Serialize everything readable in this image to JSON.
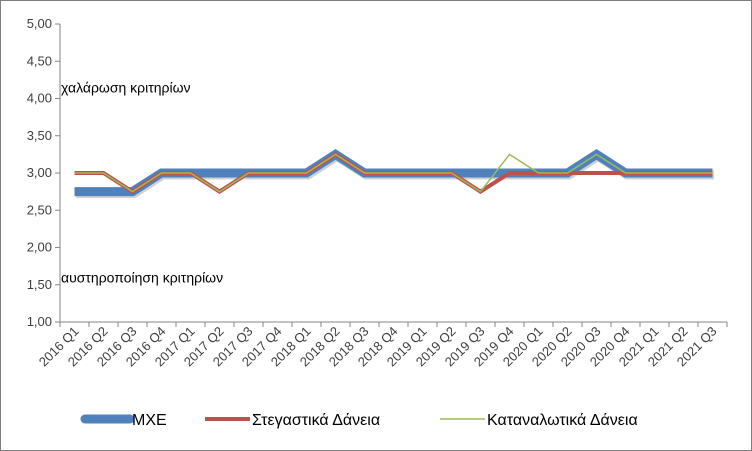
{
  "chart_data": {
    "type": "line",
    "title": "",
    "xlabel": "",
    "ylabel": "",
    "ylim": [
      1.0,
      5.0
    ],
    "yticks": [
      "1,00",
      "1,50",
      "2,00",
      "2,50",
      "3,00",
      "3,50",
      "4,00",
      "4,50",
      "5,00"
    ],
    "grid": "none",
    "legend_position": "bottom",
    "categories": [
      "2016 Q1",
      "2016 Q2",
      "2016 Q3",
      "2016 Q4",
      "2017 Q1",
      "2017 Q2",
      "2017 Q3",
      "2017 Q4",
      "2018 Q1",
      "2018 Q2",
      "2018 Q3",
      "2018 Q4",
      "2019 Q1",
      "2019 Q2",
      "2019 Q3",
      "2019 Q4",
      "2020 Q1",
      "2020 Q2",
      "2020 Q3",
      "2020 Q4",
      "2021 Q1",
      "2021 Q2",
      "2021 Q3"
    ],
    "series": [
      {
        "name": "ΜΧΕ",
        "color": "#4F81BD",
        "values": [
          2.75,
          2.75,
          2.75,
          3.0,
          3.0,
          3.0,
          3.0,
          3.0,
          3.0,
          3.25,
          3.0,
          3.0,
          3.0,
          3.0,
          3.0,
          3.0,
          3.0,
          3.0,
          3.25,
          3.0,
          3.0,
          3.0,
          3.0
        ]
      },
      {
        "name": "Στεγαστικά Δάνεια",
        "color": "#C0504D",
        "values": [
          3.0,
          3.0,
          2.75,
          3.0,
          3.0,
          2.75,
          3.0,
          3.0,
          3.0,
          3.25,
          3.0,
          3.0,
          3.0,
          3.0,
          2.75,
          3.0,
          3.0,
          3.0,
          3.0,
          3.0,
          3.0,
          3.0,
          3.0
        ]
      },
      {
        "name": "Καταναλωτικά Δάνεια",
        "color": "#9BBB59",
        "values": [
          3.0,
          3.0,
          2.75,
          3.0,
          3.0,
          2.75,
          3.0,
          3.0,
          3.0,
          3.25,
          3.0,
          3.0,
          3.0,
          3.0,
          2.75,
          3.25,
          3.0,
          3.0,
          3.25,
          3.0,
          3.0,
          3.0,
          3.0
        ]
      }
    ],
    "annotations": [
      {
        "text": "χαλάρωση κριτηρίων",
        "y": 4.15
      },
      {
        "text": "αυστηροποίηση κριτηρίων",
        "y": 1.6
      }
    ]
  }
}
